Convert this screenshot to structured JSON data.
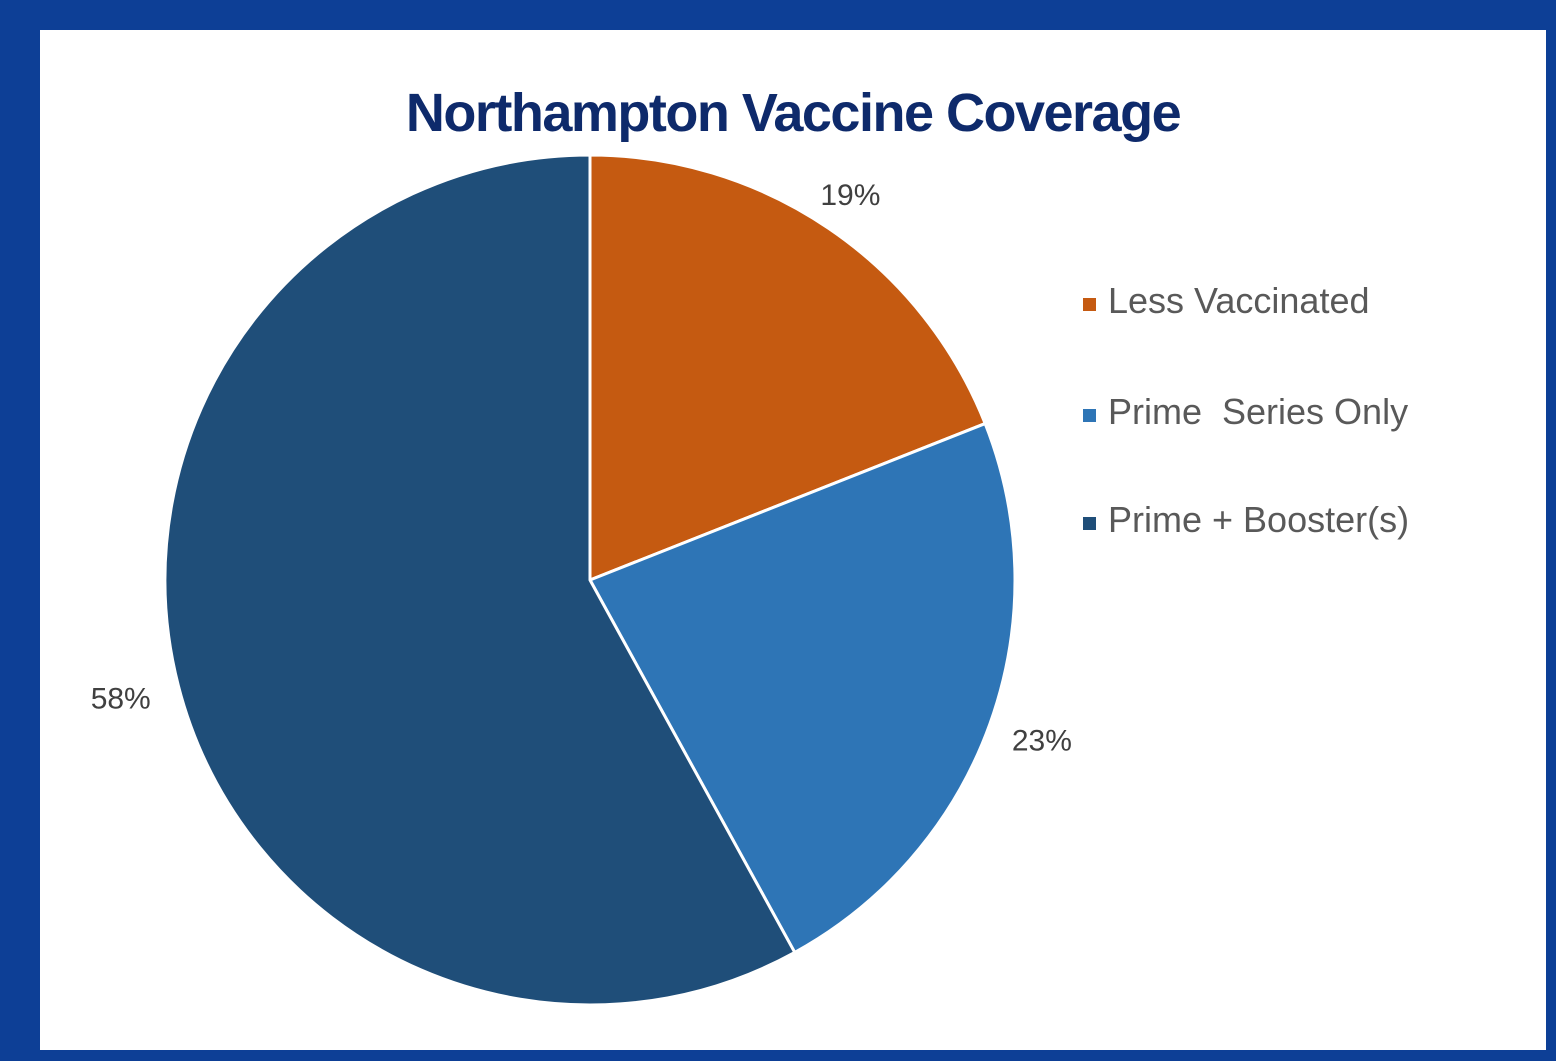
{
  "chart_data": {
    "type": "pie",
    "title": "Northampton Vaccine Coverage",
    "categories": [
      "Less Vaccinated",
      "Prime  Series Only",
      "Prime + Booster(s)"
    ],
    "values": [
      19,
      23,
      58
    ],
    "labels": [
      "19%",
      "23%",
      "58%"
    ],
    "colors": [
      "#c55a11",
      "#2e75b6",
      "#1f4e79"
    ],
    "legend": "right"
  },
  "colors": {
    "frame": "#0d3f96",
    "panel": "#ffffff",
    "title": "#0e2a6b"
  }
}
